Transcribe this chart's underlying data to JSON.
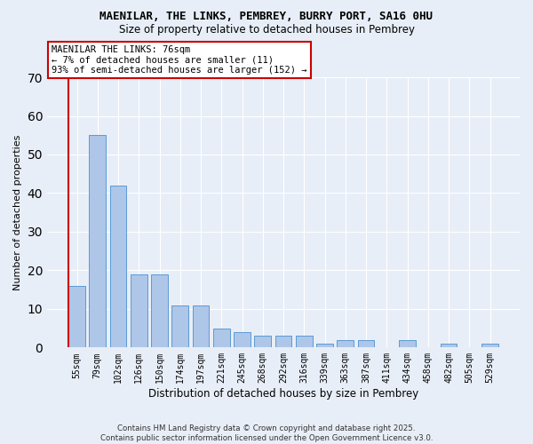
{
  "title": "MAENILAR, THE LINKS, PEMBREY, BURRY PORT, SA16 0HU",
  "subtitle": "Size of property relative to detached houses in Pembrey",
  "xlabel": "Distribution of detached houses by size in Pembrey",
  "ylabel": "Number of detached properties",
  "categories": [
    "55sqm",
    "79sqm",
    "102sqm",
    "126sqm",
    "150sqm",
    "174sqm",
    "197sqm",
    "221sqm",
    "245sqm",
    "268sqm",
    "292sqm",
    "316sqm",
    "339sqm",
    "363sqm",
    "387sqm",
    "411sqm",
    "434sqm",
    "458sqm",
    "482sqm",
    "505sqm",
    "529sqm"
  ],
  "values": [
    16,
    55,
    42,
    19,
    19,
    11,
    11,
    5,
    4,
    3,
    3,
    3,
    1,
    2,
    2,
    0,
    2,
    0,
    1,
    0,
    1
  ],
  "bar_color": "#aec6e8",
  "bar_edge_color": "#5b9bd5",
  "background_color": "#e8eef7",
  "grid_color": "#ffffff",
  "vline_color": "#cc0000",
  "annotation_text": "MAENILAR THE LINKS: 76sqm\n← 7% of detached houses are smaller (11)\n93% of semi-detached houses are larger (152) →",
  "annotation_box_color": "#ffffff",
  "annotation_box_edge": "#cc0000",
  "footer_text": "Contains HM Land Registry data © Crown copyright and database right 2025.\nContains public sector information licensed under the Open Government Licence v3.0.",
  "ylim": [
    0,
    70
  ],
  "yticks": [
    0,
    10,
    20,
    30,
    40,
    50,
    60,
    70
  ],
  "title_fontsize": 9,
  "subtitle_fontsize": 8.5
}
